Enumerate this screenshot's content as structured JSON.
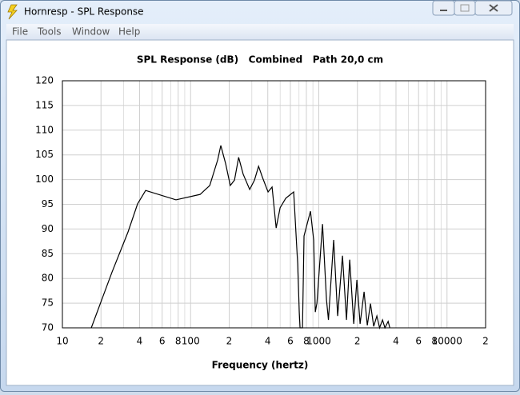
{
  "window": {
    "title": "Hornresp - SPL Response",
    "menu": [
      "File",
      "Tools",
      "Window",
      "Help"
    ]
  },
  "chart_data": {
    "type": "line",
    "title": "SPL Response (dB)   Combined   Path 20,0 cm",
    "x_label": "Frequency (hertz)",
    "log_x": true,
    "grid": true,
    "color": "#000000",
    "xlim": [
      10,
      20000
    ],
    "ylim": [
      70,
      120
    ],
    "xticks": [
      10,
      {
        "value": 20,
        "label": "2"
      },
      {
        "value": 40,
        "label": "4"
      },
      {
        "value": 60,
        "label": "6"
      },
      {
        "value": 80,
        "label": "8"
      },
      100,
      {
        "value": 200,
        "label": "2"
      },
      {
        "value": 400,
        "label": "4"
      },
      {
        "value": 600,
        "label": "6"
      },
      {
        "value": 800,
        "label": "8"
      },
      1000,
      {
        "value": 2000,
        "label": "2"
      },
      {
        "value": 4000,
        "label": "4"
      },
      {
        "value": 6000,
        "label": "6"
      },
      {
        "value": 8000,
        "label": "8"
      },
      10000,
      {
        "value": 20000,
        "label": "2"
      }
    ],
    "x_minor_grid": [
      30,
      50,
      70,
      90,
      300,
      500,
      700,
      900,
      3000,
      5000,
      7000,
      9000
    ],
    "yticks": [
      70,
      75,
      80,
      85,
      90,
      95,
      100,
      105,
      110,
      115,
      120
    ],
    "x": [
      16.8,
      24.4,
      32.5,
      38.6,
      44.6,
      76.9,
      118.6,
      141,
      162.7,
      172,
      187.7,
      204,
      220,
      237,
      257,
      289,
      315,
      339,
      364,
      402,
      432,
      465,
      499,
      552,
      602,
      637,
      684,
      704,
      714,
      746,
      767,
      861,
      912,
      939,
      967,
      1069,
      1148,
      1189,
      1306,
      1403,
      1530,
      1644,
      1742,
      1873,
      1982,
      2099,
      2255,
      2389,
      2530,
      2680,
      2838,
      2979,
      3141,
      3279,
      3474,
      3580
    ],
    "values": [
      70,
      81.3,
      89.4,
      95.1,
      97.8,
      95.9,
      97,
      98.8,
      104,
      106.9,
      103.2,
      98.8,
      99.9,
      104.5,
      101.1,
      98,
      99.9,
      102.7,
      100.4,
      97.5,
      98.5,
      90.2,
      94.3,
      96.2,
      97,
      97.5,
      83,
      73.2,
      70,
      70,
      88.6,
      93.6,
      87.8,
      73.2,
      75,
      91,
      75.7,
      71.6,
      87.8,
      72.4,
      84.6,
      71.6,
      83.8,
      70.8,
      79.7,
      70.8,
      77.3,
      70.5,
      74.9,
      70.3,
      72.4,
      70,
      71.6,
      70,
      71.3,
      70
    ]
  }
}
